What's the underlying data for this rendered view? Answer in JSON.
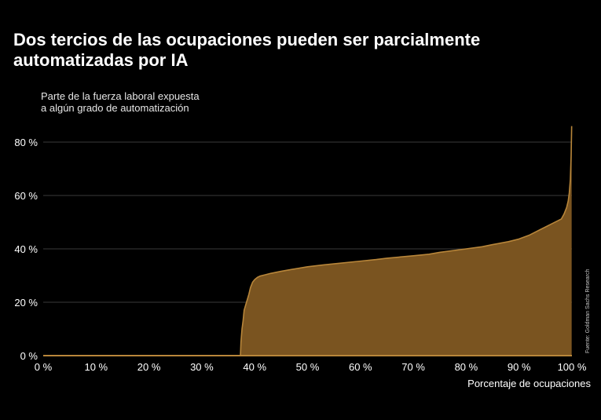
{
  "header": {
    "title": "Dos tercios de las ocupaciones pueden ser parcialmente automatizadas por IA",
    "subtitle_line1": "Parte de la fuerza laboral expuesta",
    "subtitle_line2": "a algún grado de automatización"
  },
  "source": "Fuente: Goldman Sachs Research",
  "colors": {
    "area_fill": "#7a5420",
    "area_stroke": "#b8863a",
    "grid": "#3a3a3a",
    "background": "#000000",
    "text": "#ffffff"
  },
  "chart_data": {
    "type": "area",
    "title": "Dos tercios de las ocupaciones pueden ser parcialmente automatizadas por IA",
    "ylabel": "Parte de la fuerza laboral expuesta a algún grado de automatización",
    "xlabel": "Porcentaje de ocupaciones",
    "xlim": [
      0,
      100
    ],
    "ylim": [
      0,
      80
    ],
    "grid": true,
    "x_ticks": [
      0,
      10,
      20,
      30,
      40,
      50,
      60,
      70,
      80,
      90,
      100
    ],
    "x_tick_labels": [
      "0 %",
      "10 %",
      "20 %",
      "30 %",
      "40 %",
      "50 %",
      "60 %",
      "70 %",
      "80 %",
      "90 %",
      "100 %"
    ],
    "y_ticks": [
      0,
      20,
      40,
      60,
      80
    ],
    "y_tick_labels": [
      "0 %",
      "20 %",
      "40 %",
      "60 %",
      "80 %"
    ],
    "series": [
      {
        "x": [
          0,
          37.3,
          37.4,
          37.6,
          37.8,
          38.0,
          38.3,
          38.6,
          38.9,
          39.2,
          39.6,
          40.0,
          40.5,
          41.0,
          42.0,
          43.0,
          45.0,
          47.0,
          50.0,
          53.0,
          55.0,
          60.0,
          63.0,
          65.0,
          70.0,
          73.0,
          75.0,
          80.0,
          83.0,
          85.0,
          88.0,
          90.0,
          92.0,
          94.0,
          95.0,
          96.0,
          97.0,
          98.0,
          98.5,
          99.0,
          99.3,
          99.5,
          99.7,
          99.85,
          99.95
        ],
        "y": [
          0,
          0,
          5,
          10,
          13,
          17,
          19,
          21,
          23,
          25.5,
          27.5,
          28.5,
          29.3,
          29.8,
          30.3,
          30.8,
          31.6,
          32.3,
          33.3,
          34.0,
          34.4,
          35.4,
          36.0,
          36.5,
          37.4,
          38.0,
          38.7,
          40.0,
          40.8,
          41.6,
          42.7,
          43.7,
          45.2,
          47.2,
          48.2,
          49.2,
          50.2,
          51.2,
          53.0,
          55.5,
          58.0,
          61.0,
          66.0,
          75.0,
          86.0
        ]
      }
    ]
  }
}
